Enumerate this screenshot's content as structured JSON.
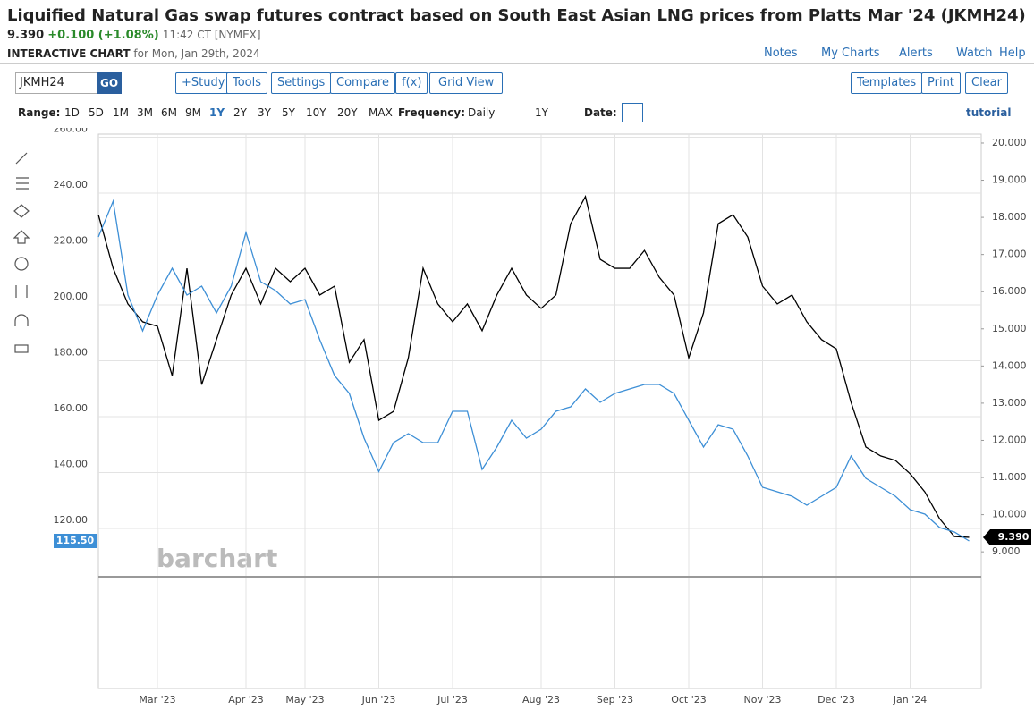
{
  "header": {
    "title": "Liquified Natural Gas swap futures contract based on South East Asian LNG prices from Platts Mar '24 (JKMH24)",
    "price": "9.390",
    "change": "+0.100 (+1.08%)",
    "time": "11:42 CT [NYMEX]",
    "chart_label": "INTERACTIVE CHART",
    "date": "for Mon, Jan 29th, 2024",
    "links": [
      "Notes",
      "My Charts",
      "Alerts",
      "Watch",
      "Help"
    ]
  },
  "toolbar": {
    "symbol": "JKMH24",
    "go": "GO",
    "buttons": [
      "+Study",
      "Tools",
      "Settings",
      "Compare",
      "f(x)",
      "Grid View"
    ],
    "right_buttons": [
      "Templates",
      "Print",
      "Clear"
    ]
  },
  "range_bar": {
    "range_label": "Range:",
    "ranges": [
      "1D",
      "5D",
      "1M",
      "3M",
      "6M",
      "9M",
      "1Y",
      "2Y",
      "3Y",
      "5Y",
      "10Y",
      "20Y",
      "MAX"
    ],
    "frequency_label": "Frequency:",
    "frequency": "Daily",
    "period": "1Y",
    "date_label": "Date:",
    "tutorial": "tutorial"
  },
  "watermark": "barchart",
  "chart_data": {
    "type": "line",
    "grid": true,
    "categories": [
      null,
      null,
      null,
      null,
      "Mar '23",
      null,
      null,
      null,
      null,
      null,
      "Apr '23",
      null,
      null,
      null,
      "May '23",
      null,
      null,
      null,
      null,
      "Jun '23",
      null,
      null,
      null,
      null,
      "Jul '23",
      null,
      null,
      null,
      null,
      null,
      "Aug '23",
      null,
      null,
      null,
      null,
      "Sep '23",
      null,
      null,
      null,
      null,
      "Oct '23",
      null,
      null,
      null,
      null,
      "Nov '23",
      null,
      null,
      null,
      null,
      "Dec '23",
      null,
      null,
      null,
      null,
      "Jan '24",
      null,
      null,
      null,
      null
    ],
    "series": [
      {
        "color": "#000000",
        "axis": "y2",
        "last_label": "9.390",
        "values": [
          18.07,
          16.63,
          15.67,
          15.19,
          15.07,
          13.74,
          16.63,
          13.5,
          14.71,
          15.91,
          16.63,
          15.67,
          16.63,
          16.27,
          16.63,
          15.91,
          16.15,
          14.1,
          14.71,
          12.54,
          12.78,
          14.22,
          16.63,
          15.67,
          15.19,
          15.67,
          14.95,
          15.91,
          16.63,
          15.91,
          15.55,
          15.91,
          17.83,
          18.56,
          16.87,
          16.63,
          16.63,
          17.11,
          16.39,
          15.91,
          14.22,
          15.43,
          17.83,
          18.07,
          17.47,
          16.15,
          15.67,
          15.91,
          15.19,
          14.71,
          14.46,
          13.02,
          11.82,
          11.58,
          11.46,
          11.1,
          10.61,
          9.89,
          9.41,
          9.39
        ]
      },
      {
        "color": "#3d8fd6",
        "last_label": "115.50",
        "values": [
          224.3,
          237.1,
          203.5,
          190.7,
          203.5,
          213.1,
          203.5,
          206.7,
          197.1,
          206.7,
          225.9,
          208.3,
          205.1,
          200.3,
          201.9,
          187.5,
          174.7,
          168.3,
          152.3,
          140.3,
          150.7,
          153.9,
          150.7,
          150.7,
          161.9,
          161.9,
          141.1,
          149.1,
          158.7,
          152.3,
          155.5,
          161.9,
          163.5,
          169.9,
          165.1,
          168.3,
          169.9,
          171.5,
          171.5,
          168.3,
          158.7,
          149.1,
          157.1,
          155.5,
          145.9,
          134.7,
          133.1,
          131.5,
          128.3,
          131.5,
          134.7,
          145.9,
          137.9,
          134.7,
          131.5,
          126.7,
          125.1,
          120.3,
          118.7,
          115.5
        ]
      }
    ],
    "ylim": [
      102.7,
      261.1
    ],
    "yticks": [
      {
        "value": 120,
        "label": "120.00"
      },
      {
        "value": 140,
        "label": "140.00"
      },
      {
        "value": 160,
        "label": "160.00"
      },
      {
        "value": 180,
        "label": "180.00"
      },
      {
        "value": 200,
        "label": "200.00"
      },
      {
        "value": 220,
        "label": "220.00"
      },
      {
        "value": 240,
        "label": "240.00"
      },
      {
        "value": 260,
        "label": "260.00"
      }
    ],
    "y2lim": [
      8.33,
      20.24
    ],
    "y2ticks": [
      {
        "value": 9,
        "label": "9.000"
      },
      {
        "value": 10,
        "label": "10.000"
      },
      {
        "value": 11,
        "label": "11.000"
      },
      {
        "value": 12,
        "label": "12.000"
      },
      {
        "value": 13,
        "label": "13.000"
      },
      {
        "value": 14,
        "label": "14.000"
      },
      {
        "value": 15,
        "label": "15.000"
      },
      {
        "value": 16,
        "label": "16.000"
      },
      {
        "value": 17,
        "label": "17.000"
      },
      {
        "value": 18,
        "label": "18.000"
      },
      {
        "value": 19,
        "label": "19.000"
      },
      {
        "value": 20,
        "label": "20.000"
      }
    ]
  }
}
